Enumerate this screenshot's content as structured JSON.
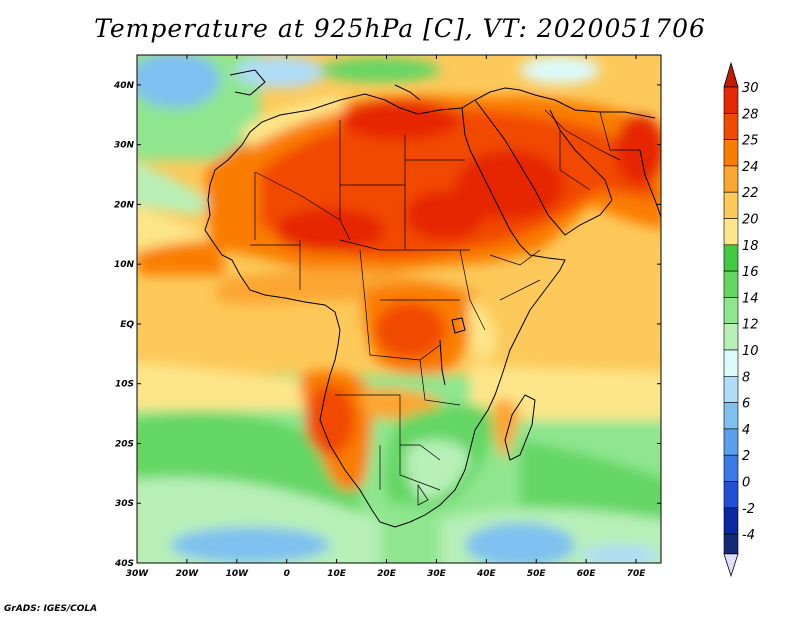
{
  "title": "Temperature at 925hPa [C], VT: 2020051706",
  "credit": "GrADS: IGES/COLA",
  "map": {
    "lon_range": [
      -30,
      75
    ],
    "lat_range": [
      -40,
      45
    ],
    "lon_ticks": [
      "30W",
      "20W",
      "10W",
      "0",
      "10E",
      "20E",
      "30E",
      "40E",
      "50E",
      "60E",
      "70E"
    ],
    "lat_ticks": [
      "40N",
      "30N",
      "20N",
      "10N",
      "EQ",
      "10S",
      "20S",
      "30S",
      "40S"
    ],
    "variable": "temperature",
    "units": "C"
  },
  "colorbar": {
    "labels": [
      "30",
      "28",
      "25",
      "24",
      "22",
      "20",
      "18",
      "16",
      "14",
      "12",
      "10",
      "8",
      "6",
      "4",
      "2",
      "0",
      "-2",
      "-4"
    ],
    "colors": [
      "#e62800",
      "#f24a00",
      "#fa7d00",
      "#fba632",
      "#fcc95a",
      "#fde68a",
      "#41c941",
      "#64d664",
      "#8fe68f",
      "#b8f0b8",
      "#dcfafa",
      "#b0dcf8",
      "#7ec0f0",
      "#5aa0ec",
      "#3a7ae6",
      "#1f50d6",
      "#0a28a0",
      "#142a78"
    ],
    "top_arrow_color": "#c41a00",
    "bottom_arrow_color": "#e0e0fa"
  }
}
